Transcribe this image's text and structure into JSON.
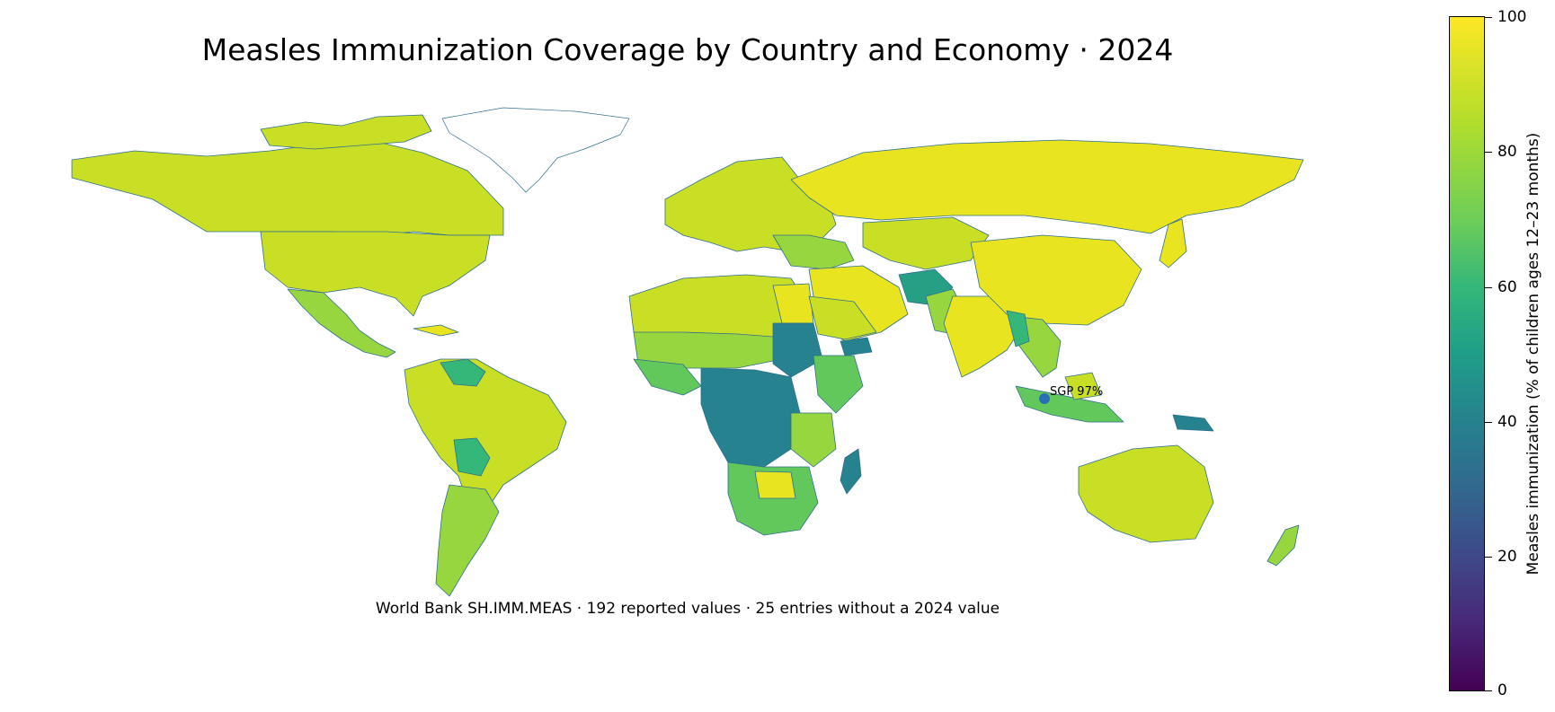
{
  "title": "Measles Immunization Coverage by Country and Economy · 2024",
  "subtitle": "World Bank SH.IMM.MEAS · 192 reported values · 25 entries without a 2024 value",
  "annotation": "SGP 97%",
  "colorbar": {
    "label": "Measles immunization (% of children ages 12–23 months)",
    "ticks": [
      "0",
      "20",
      "40",
      "60",
      "80",
      "100"
    ],
    "range": [
      0,
      100
    ],
    "colormap": "viridis"
  },
  "colors": {
    "high": "#e8e41f",
    "upper": "#c9df25",
    "mid_high": "#97d63f",
    "mid": "#63c85c",
    "mid_low": "#35b779",
    "low": "#1f9e89",
    "lower": "#26828e",
    "marker": "#2a6fb4",
    "border": "#2f6f8f"
  }
}
